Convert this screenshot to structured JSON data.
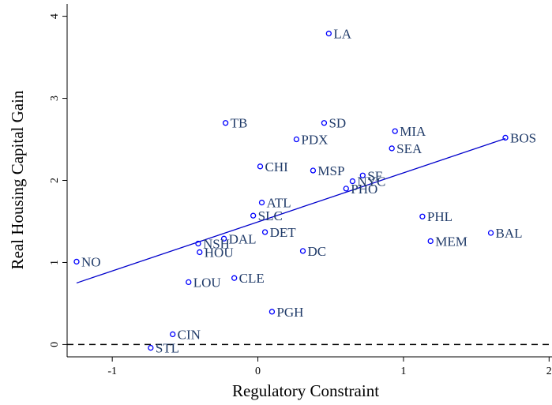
{
  "chart_data": {
    "type": "scatter",
    "x_label": "Regulatory Constraint",
    "y_label": "Real Housing Capital Gain",
    "labels": [
      "LA",
      "TB",
      "SD",
      "MIA",
      "PDX",
      "BOS",
      "SEA",
      "CHI",
      "MSP",
      "SF",
      "NYC",
      "PHO",
      "ATL",
      "SLC",
      "PHL",
      "DET",
      "BAL",
      "DAL",
      "NSH",
      "MEM",
      "NO",
      "HOU",
      "DC",
      "LOU",
      "CLE",
      "PGH",
      "CIN",
      "STL"
    ],
    "x": [
      0.487,
      -0.222,
      0.455,
      0.942,
      0.265,
      1.7,
      0.92,
      0.016,
      0.379,
      0.72,
      0.65,
      0.606,
      0.027,
      -0.032,
      1.13,
      0.049,
      1.6,
      -0.233,
      -0.41,
      1.186,
      -1.245,
      -0.4,
      0.309,
      -0.476,
      -0.162,
      0.097,
      -0.585,
      -0.736
    ],
    "values": [
      3.79,
      2.7,
      2.7,
      2.6,
      2.5,
      2.52,
      2.39,
      2.17,
      2.12,
      2.06,
      1.99,
      1.9,
      1.73,
      1.57,
      1.56,
      1.37,
      1.36,
      1.29,
      1.23,
      1.26,
      1.01,
      1.125,
      1.14,
      0.76,
      0.81,
      0.4,
      0.125,
      -0.04
    ],
    "marker_color": "#0000ff",
    "label_color": "#1f3a68",
    "fit": {
      "x": [
        -1.245,
        1.7
      ],
      "y": [
        0.75,
        2.51
      ],
      "color": "#0000cc"
    },
    "hline": 0,
    "xlim": [
      -1.31,
      2.02
    ],
    "ylim": [
      -0.15,
      4.15
    ],
    "xticks": [
      -1,
      0,
      1,
      2
    ],
    "yticks": [
      0,
      1,
      2,
      3,
      4
    ]
  }
}
